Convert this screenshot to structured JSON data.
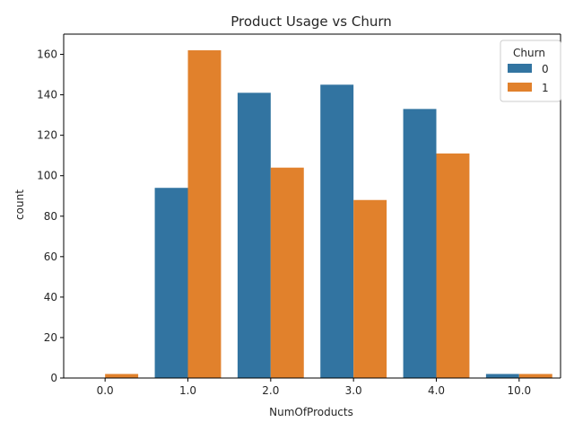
{
  "chart_data": {
    "type": "bar",
    "title": "Product Usage vs Churn",
    "xlabel": "NumOfProducts",
    "ylabel": "count",
    "categories": [
      "0.0",
      "1.0",
      "2.0",
      "3.0",
      "4.0",
      "10.0"
    ],
    "ylim": [
      0,
      170
    ],
    "yticks": [
      0,
      20,
      40,
      60,
      80,
      100,
      120,
      140,
      160
    ],
    "grid": false,
    "legend": {
      "title": "Churn",
      "placement": "top-right"
    },
    "series": [
      {
        "name": "0",
        "color": "#3274a1",
        "values": [
          0,
          94,
          141,
          145,
          133,
          2
        ]
      },
      {
        "name": "1",
        "color": "#e1812c",
        "values": [
          2,
          162,
          104,
          88,
          111,
          2
        ]
      }
    ]
  }
}
